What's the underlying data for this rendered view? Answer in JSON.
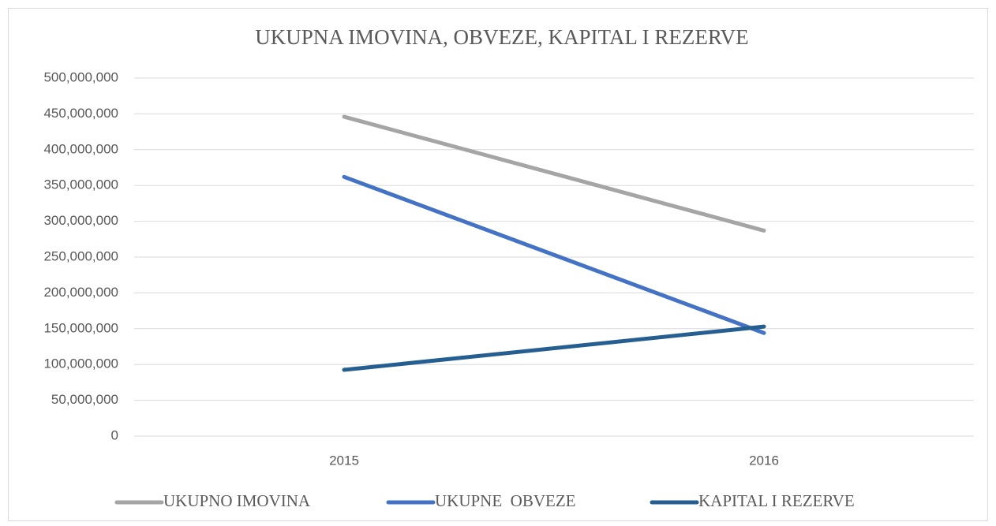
{
  "chart_data": {
    "type": "line",
    "title": "UKUPNA IMOVINA, OBVEZE, KAPITAL I REZERVE",
    "categories": [
      "2015",
      "2016"
    ],
    "series": [
      {
        "name": "UKUPNO IMOVINA",
        "color": "#a5a5a5",
        "values": [
          446000000,
          287000000
        ]
      },
      {
        "name": "UKUPNE  OBVEZE",
        "color": "#4472c4",
        "values": [
          362000000,
          144000000
        ]
      },
      {
        "name": "KAPITAL I REZERVE",
        "color": "#255e91",
        "values": [
          92500000,
          153000000
        ]
      }
    ],
    "ylim": [
      0,
      500000000
    ],
    "yticks": [
      0,
      {
        "value": 50000000,
        "label": "50,000,000"
      },
      {
        "value": 100000000,
        "label": "100,000,000"
      },
      {
        "value": 150000000,
        "label": "150,000,000"
      },
      {
        "value": 200000000,
        "label": "200,000,000"
      },
      {
        "value": 250000000,
        "label": "250,000,000"
      },
      {
        "value": 300000000,
        "label": "300,000,000"
      },
      {
        "value": 350000000,
        "label": "350,000,000"
      },
      {
        "value": 400000000,
        "label": "400,000,000"
      },
      {
        "value": 450000000,
        "label": "450,000,000"
      },
      {
        "value": 500000000,
        "label": "500,000,000"
      }
    ],
    "grid": true,
    "legend": "bottom"
  }
}
